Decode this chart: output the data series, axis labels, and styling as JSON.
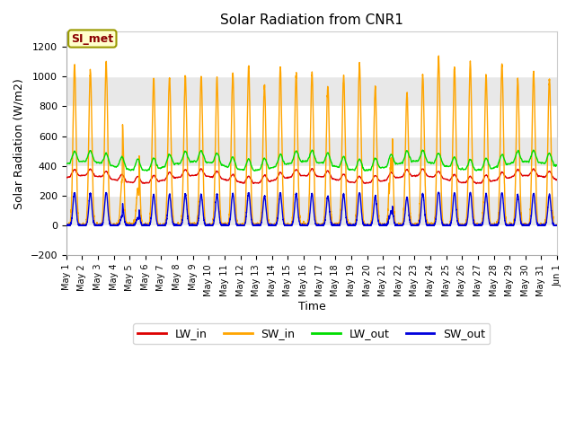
{
  "title": "Solar Radiation from CNR1",
  "xlabel": "Time",
  "ylabel": "Solar Radiation (W/m2)",
  "ylim": [
    -200,
    1300
  ],
  "yticks": [
    -200,
    0,
    200,
    400,
    600,
    800,
    1000,
    1200
  ],
  "legend_labels": [
    "LW_in",
    "SW_in",
    "LW_out",
    "SW_out"
  ],
  "colors": {
    "LW_in": "#dd0000",
    "SW_in": "#ffa500",
    "LW_out": "#00dd00",
    "SW_out": "#0000dd"
  },
  "annotation_text": "SI_met",
  "annotation_color": "#8b0000",
  "annotation_bg": "#ffffcc",
  "annotation_border": "#999900",
  "plot_bg": "#f0f0f0",
  "band_light": "#f8f8f8",
  "band_dark": "#e0e0e0",
  "grid_color": "#ffffff",
  "n_days": 31,
  "pts_per_day": 144,
  "x_tick_labels": [
    "May 1",
    "May 18",
    "May 19",
    "May 20",
    "May 21",
    "May 22",
    "May 23",
    "May 24",
    "May 25",
    "May 26",
    "May 27",
    "May 28",
    "May 29",
    "May 30",
    "May 31",
    "Jun 1"
  ]
}
